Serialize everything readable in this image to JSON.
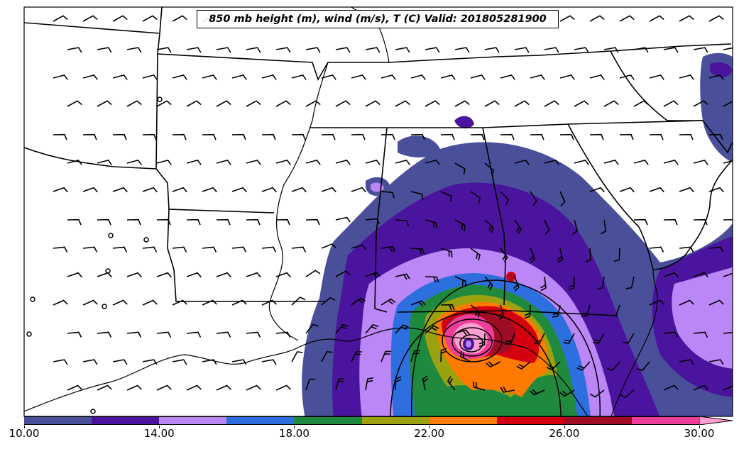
{
  "title": "850 mb height (m), wind (m/s), T (C) Valid: 201805281900",
  "colorbar": {
    "tick_labels": [
      "10.00",
      "14.00",
      "18.00",
      "22.00",
      "26.00",
      "30.00"
    ],
    "min": 10,
    "max": 30,
    "step": 2,
    "colors": [
      "#4a4f9a",
      "#4b149e",
      "#bb86f5",
      "#2e6fe0",
      "#1f8a3e",
      "#9ca20f",
      "#ff7a00",
      "#d4000f",
      "#a00c26",
      "#ef3e9a",
      "#ff9fd2"
    ],
    "extend": "max"
  },
  "map": {
    "region": "Southeastern United States / Gulf of Mexico",
    "features": [
      "state-boundaries",
      "coastline",
      "wind-barbs",
      "height-contours",
      "temperature-fill"
    ],
    "storm_center_label": "low-pressure-center"
  }
}
